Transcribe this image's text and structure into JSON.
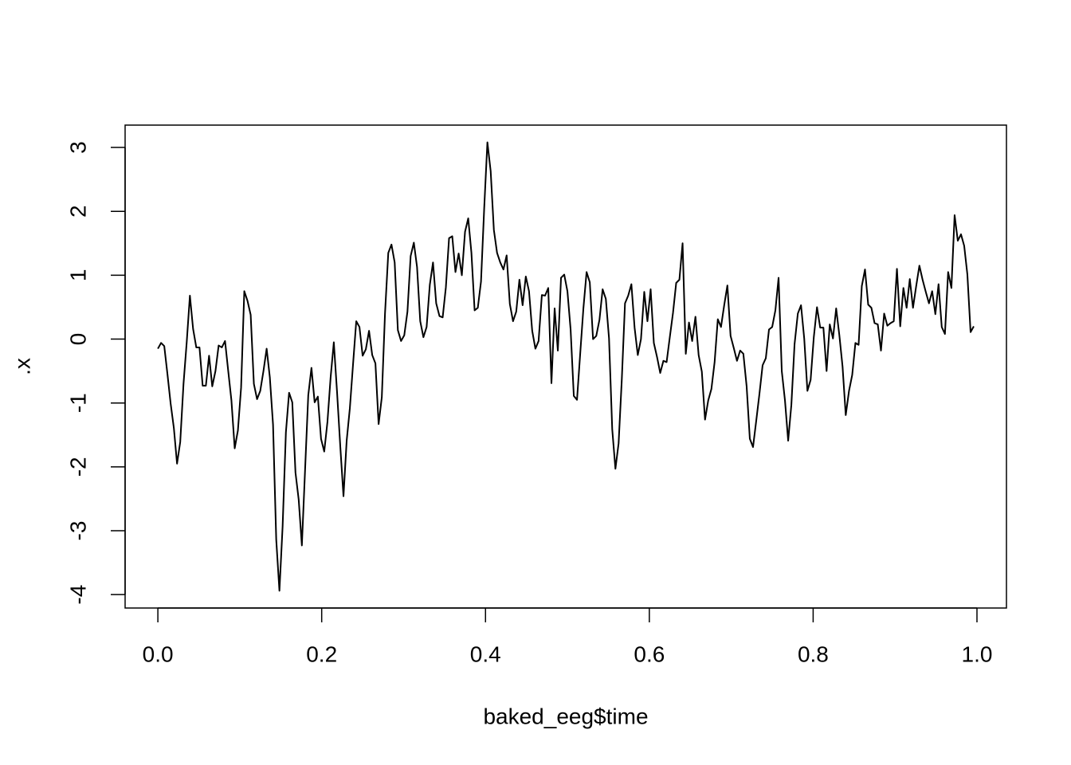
{
  "chart_data": {
    "type": "line",
    "xlabel": "baked_eeg$time",
    "ylabel": ".x",
    "xlim": [
      -0.04,
      1.036
    ],
    "ylim": [
      -4.21,
      3.35
    ],
    "xticks": [
      {
        "value": 0,
        "label": "0.0"
      },
      0.2,
      0.4,
      0.6,
      0.8,
      {
        "value": 1,
        "label": "1.0"
      }
    ],
    "yticks": [
      -4,
      -3,
      -2,
      -1,
      0,
      1,
      2,
      3
    ],
    "color": "#000000",
    "x": [
      0,
      0.0039,
      0.0078,
      0.0117,
      0.0156,
      0.0195,
      0.0234,
      0.0273,
      0.0313,
      0.0352,
      0.0391,
      0.043,
      0.0469,
      0.0508,
      0.0547,
      0.0586,
      0.0625,
      0.0664,
      0.0703,
      0.0742,
      0.0781,
      0.082,
      0.0859,
      0.0898,
      0.0938,
      0.0977,
      0.1016,
      0.1055,
      0.1094,
      0.1133,
      0.1172,
      0.1211,
      0.125,
      0.1289,
      0.1328,
      0.1367,
      0.1406,
      0.1445,
      0.1484,
      0.1523,
      0.1563,
      0.1602,
      0.1641,
      0.168,
      0.1719,
      0.1758,
      0.1797,
      0.1836,
      0.1875,
      0.1914,
      0.1953,
      0.1992,
      0.2031,
      0.207,
      0.2109,
      0.2148,
      0.2188,
      0.2227,
      0.2266,
      0.2305,
      0.2344,
      0.2383,
      0.2422,
      0.2461,
      0.25,
      0.2539,
      0.2578,
      0.2617,
      0.2656,
      0.2695,
      0.2734,
      0.2773,
      0.2813,
      0.2852,
      0.2891,
      0.293,
      0.2969,
      0.3008,
      0.3047,
      0.3086,
      0.3125,
      0.3164,
      0.3203,
      0.3242,
      0.3281,
      0.332,
      0.3359,
      0.3398,
      0.3438,
      0.3477,
      0.3516,
      0.3555,
      0.3594,
      0.3633,
      0.3672,
      0.3711,
      0.375,
      0.3789,
      0.3828,
      0.3867,
      0.3906,
      0.3945,
      0.3984,
      0.4023,
      0.4063,
      0.4102,
      0.4141,
      0.418,
      0.4219,
      0.4258,
      0.4297,
      0.4336,
      0.4375,
      0.4414,
      0.4453,
      0.4492,
      0.4531,
      0.457,
      0.4609,
      0.4648,
      0.4688,
      0.4727,
      0.4766,
      0.4805,
      0.4844,
      0.4883,
      0.4922,
      0.4961,
      0.5,
      0.5039,
      0.5078,
      0.5117,
      0.5156,
      0.5195,
      0.5234,
      0.5273,
      0.5313,
      0.5352,
      0.5391,
      0.543,
      0.5469,
      0.5508,
      0.5547,
      0.5586,
      0.5625,
      0.5664,
      0.5703,
      0.5742,
      0.5781,
      0.582,
      0.5859,
      0.5898,
      0.5938,
      0.5977,
      0.6016,
      0.6055,
      0.6094,
      0.6133,
      0.6172,
      0.6211,
      0.625,
      0.6289,
      0.6328,
      0.6367,
      0.6406,
      0.6445,
      0.6484,
      0.6523,
      0.6563,
      0.6602,
      0.6641,
      0.668,
      0.6719,
      0.6758,
      0.6797,
      0.6836,
      0.6875,
      0.6914,
      0.6953,
      0.6992,
      0.7031,
      0.707,
      0.7109,
      0.7148,
      0.7188,
      0.7227,
      0.7266,
      0.7305,
      0.7344,
      0.7383,
      0.7422,
      0.7461,
      0.75,
      0.7539,
      0.7578,
      0.7617,
      0.7656,
      0.7695,
      0.7734,
      0.7773,
      0.7813,
      0.7852,
      0.7891,
      0.793,
      0.7969,
      0.8008,
      0.8047,
      0.8086,
      0.8125,
      0.8164,
      0.8203,
      0.8242,
      0.8281,
      0.832,
      0.8359,
      0.8398,
      0.8438,
      0.8477,
      0.8516,
      0.8555,
      0.8594,
      0.8633,
      0.8672,
      0.8711,
      0.875,
      0.8789,
      0.8828,
      0.8867,
      0.8906,
      0.8945,
      0.8984,
      0.9023,
      0.9063,
      0.9102,
      0.9141,
      0.918,
      0.9219,
      0.9258,
      0.9297,
      0.9336,
      0.9375,
      0.9414,
      0.9453,
      0.9492,
      0.9531,
      0.957,
      0.9609,
      0.9648,
      0.9688,
      0.9727,
      0.9766,
      0.9805,
      0.9844,
      0.9883,
      0.9922,
      0.9961
    ],
    "values": [
      -0.15,
      -0.06,
      -0.11,
      -0.55,
      -1.01,
      -1.39,
      -1.95,
      -1.61,
      -0.7,
      -0.05,
      0.68,
      0.16,
      -0.13,
      -0.13,
      -0.73,
      -0.73,
      -0.26,
      -0.74,
      -0.5,
      -0.1,
      -0.13,
      -0.03,
      -0.5,
      -0.96,
      -1.71,
      -1.43,
      -0.76,
      0.75,
      0.6,
      0.38,
      -0.7,
      -0.94,
      -0.81,
      -0.5,
      -0.15,
      -0.6,
      -1.34,
      -3.14,
      -3.94,
      -2.93,
      -1.46,
      -0.84,
      -0.99,
      -2.09,
      -2.51,
      -3.23,
      -2.05,
      -0.88,
      -0.45,
      -0.99,
      -0.9,
      -1.56,
      -1.76,
      -1.3,
      -0.6,
      -0.05,
      -0.84,
      -1.68,
      -2.46,
      -1.59,
      -1.08,
      -0.39,
      0.28,
      0.19,
      -0.26,
      -0.16,
      0.13,
      -0.25,
      -0.38,
      -1.33,
      -0.91,
      0.4,
      1.35,
      1.48,
      1.2,
      0.14,
      -0.03,
      0.06,
      0.43,
      1.3,
      1.51,
      1.13,
      0.28,
      0.03,
      0.19,
      0.85,
      1.2,
      0.56,
      0.36,
      0.34,
      0.81,
      1.58,
      1.61,
      1.05,
      1.34,
      1.0,
      1.68,
      1.89,
      1.35,
      0.45,
      0.49,
      0.9,
      2.05,
      3.08,
      2.63,
      1.71,
      1.35,
      1.2,
      1.09,
      1.31,
      0.55,
      0.28,
      0.43,
      0.93,
      0.53,
      0.98,
      0.75,
      0.13,
      -0.15,
      -0.03,
      0.69,
      0.68,
      0.8,
      -0.69,
      0.48,
      -0.18,
      0.96,
      1.01,
      0.75,
      0.15,
      -0.89,
      -0.95,
      -0.23,
      0.48,
      1.05,
      0.89,
      0.0,
      0.05,
      0.3,
      0.78,
      0.63,
      0.01,
      -1.41,
      -2.03,
      -1.63,
      -0.63,
      0.56,
      0.68,
      0.86,
      0.18,
      -0.25,
      0.0,
      0.74,
      0.28,
      0.78,
      -0.06,
      -0.28,
      -0.53,
      -0.34,
      -0.36,
      0.03,
      0.41,
      0.88,
      0.93,
      1.5,
      -0.23,
      0.26,
      -0.03,
      0.35,
      -0.25,
      -0.51,
      -1.26,
      -0.96,
      -0.78,
      -0.36,
      0.31,
      0.19,
      0.53,
      0.84,
      0.05,
      -0.14,
      -0.34,
      -0.18,
      -0.23,
      -0.74,
      -1.56,
      -1.69,
      -1.28,
      -0.86,
      -0.41,
      -0.3,
      0.15,
      0.19,
      0.45,
      0.96,
      -0.5,
      -0.96,
      -1.59,
      -1.03,
      -0.08,
      0.4,
      0.53,
      0.01,
      -0.81,
      -0.64,
      0.03,
      0.5,
      0.18,
      0.18,
      -0.5,
      0.23,
      0.01,
      0.48,
      0.06,
      -0.43,
      -1.19,
      -0.81,
      -0.56,
      -0.06,
      -0.09,
      0.83,
      1.09,
      0.54,
      0.49,
      0.25,
      0.23,
      -0.18,
      0.4,
      0.21,
      0.25,
      0.28,
      1.1,
      0.2,
      0.8,
      0.49,
      0.94,
      0.49,
      0.83,
      1.15,
      0.93,
      0.74,
      0.56,
      0.75,
      0.39,
      0.86,
      0.19,
      0.08,
      1.05,
      0.8,
      1.94,
      1.54,
      1.64,
      1.46,
      1.01,
      0.11,
      0.2
    ]
  }
}
